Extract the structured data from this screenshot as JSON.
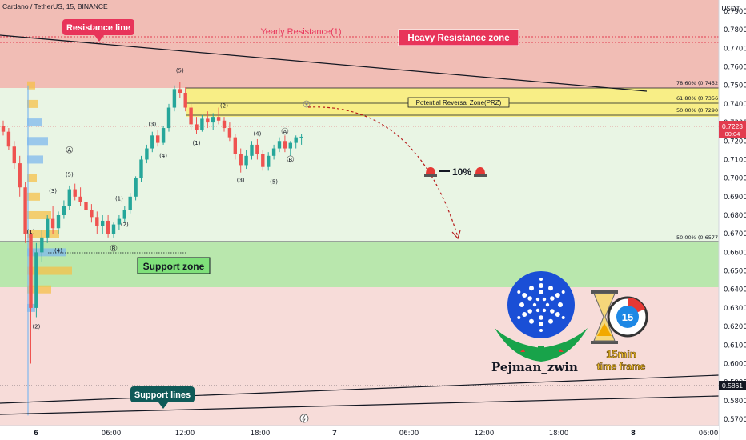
{
  "header": {
    "symbol_title": "Cardano / TetherUS, 15, BINANCE",
    "currency": "USDT"
  },
  "price_badge": {
    "price": "0.7223",
    "countdown": "00:04"
  },
  "level_badge": {
    "price": "0.5861"
  },
  "annotations": {
    "resistance_line": "Resistance line",
    "yearly_resistance": "Yearly Resistance(1)",
    "heavy_resistance_zone": "Heavy Resistance zone",
    "potential_reversal_zone": "Potential Reversal Zone(PRZ)",
    "support_zone": "Support zone",
    "support_lines": "Support lines",
    "target_drop": "10%",
    "fib_786": "78.60% (0.7452)",
    "fib_618": "61.80% (0.7356)",
    "fib_500": "50.00% (0.7290)",
    "fib_support": "50.00% (0.6577)"
  },
  "branding": {
    "author": "Pejman_zwin",
    "timeframe_number": "15",
    "timeframe_text_1": "15min",
    "timeframe_text_2": "time frame",
    "colors": {
      "cardano_blue": "#1a4fd6",
      "gold": "#f2c230",
      "leaf_green": "#18a34a"
    }
  },
  "chart_data": {
    "type": "candlestick",
    "title": "Cardano / TetherUS, 15, BINANCE",
    "y_ticks": [
      "0.7900",
      "0.7800",
      "0.7700",
      "0.7600",
      "0.7500",
      "0.7400",
      "0.7300",
      "0.7200",
      "0.7100",
      "0.7000",
      "0.6900",
      "0.6800",
      "0.6700",
      "0.6600",
      "0.6500",
      "0.6400",
      "0.6300",
      "0.6200",
      "0.6100",
      "0.6000",
      "0.5900",
      "0.5800",
      "0.5700"
    ],
    "x_ticks": [
      "6",
      "06:00",
      "12:00",
      "18:00",
      "7",
      "06:00",
      "12:00",
      "18:00",
      "8",
      "06:00"
    ],
    "ylim": [
      0.567,
      0.8
    ],
    "zones": [
      {
        "name": "Heavy Resistance zone",
        "from": 0.746,
        "to": 0.8,
        "color": "#f0b7b0"
      },
      {
        "name": "Potential Reversal Zone(PRZ)",
        "from": 0.729,
        "to": 0.7452,
        "color": "#f7ef8a"
      },
      {
        "name": "Support zone",
        "from": 0.634,
        "to": 0.6577,
        "color": "#b5e8a9"
      }
    ],
    "levels": {
      "yearly_resistance": 0.7765,
      "fib_786": 0.7452,
      "fib_618": 0.7356,
      "fib_500": 0.729,
      "fib_support": 0.6577,
      "current_price": 0.7223,
      "support_line_mark": 0.5861
    },
    "candles_ohlc": [
      [
        0.728,
        0.731,
        0.723,
        0.725
      ],
      [
        0.725,
        0.727,
        0.715,
        0.717
      ],
      [
        0.717,
        0.72,
        0.705,
        0.708
      ],
      [
        0.708,
        0.712,
        0.69,
        0.695
      ],
      [
        0.695,
        0.698,
        0.665,
        0.67
      ],
      [
        0.67,
        0.672,
        0.6,
        0.63
      ],
      [
        0.63,
        0.665,
        0.625,
        0.66
      ],
      [
        0.66,
        0.672,
        0.655,
        0.668
      ],
      [
        0.668,
        0.68,
        0.665,
        0.678
      ],
      [
        0.678,
        0.685,
        0.67,
        0.673
      ],
      [
        0.673,
        0.682,
        0.67,
        0.68
      ],
      [
        0.68,
        0.688,
        0.678,
        0.685
      ],
      [
        0.685,
        0.696,
        0.683,
        0.694
      ],
      [
        0.694,
        0.697,
        0.688,
        0.69
      ],
      [
        0.69,
        0.695,
        0.685,
        0.687
      ],
      [
        0.687,
        0.69,
        0.68,
        0.683
      ],
      [
        0.683,
        0.686,
        0.676,
        0.679
      ],
      [
        0.679,
        0.682,
        0.67,
        0.674
      ],
      [
        0.674,
        0.68,
        0.67,
        0.677
      ],
      [
        0.677,
        0.68,
        0.668,
        0.67
      ],
      [
        0.67,
        0.676,
        0.668,
        0.675
      ],
      [
        0.675,
        0.68,
        0.672,
        0.678
      ],
      [
        0.678,
        0.685,
        0.676,
        0.683
      ],
      [
        0.683,
        0.692,
        0.681,
        0.69
      ],
      [
        0.69,
        0.701,
        0.688,
        0.7
      ],
      [
        0.7,
        0.712,
        0.698,
        0.71
      ],
      [
        0.71,
        0.718,
        0.708,
        0.716
      ],
      [
        0.716,
        0.725,
        0.714,
        0.723
      ],
      [
        0.723,
        0.726,
        0.717,
        0.719
      ],
      [
        0.719,
        0.728,
        0.718,
        0.727
      ],
      [
        0.727,
        0.74,
        0.725,
        0.738
      ],
      [
        0.738,
        0.75,
        0.736,
        0.748
      ],
      [
        0.748,
        0.752,
        0.743,
        0.746
      ],
      [
        0.746,
        0.749,
        0.736,
        0.738
      ],
      [
        0.738,
        0.74,
        0.726,
        0.729
      ],
      [
        0.729,
        0.733,
        0.724,
        0.726
      ],
      [
        0.726,
        0.734,
        0.725,
        0.732
      ],
      [
        0.732,
        0.736,
        0.727,
        0.73
      ],
      [
        0.73,
        0.735,
        0.726,
        0.733
      ],
      [
        0.733,
        0.738,
        0.729,
        0.731
      ],
      [
        0.731,
        0.733,
        0.725,
        0.727
      ],
      [
        0.727,
        0.73,
        0.72,
        0.722
      ],
      [
        0.722,
        0.724,
        0.71,
        0.713
      ],
      [
        0.713,
        0.716,
        0.703,
        0.707
      ],
      [
        0.707,
        0.715,
        0.705,
        0.712
      ],
      [
        0.712,
        0.72,
        0.71,
        0.718
      ],
      [
        0.718,
        0.721,
        0.71,
        0.713
      ],
      [
        0.713,
        0.715,
        0.704,
        0.706
      ],
      [
        0.706,
        0.714,
        0.704,
        0.712
      ],
      [
        0.712,
        0.718,
        0.71,
        0.716
      ],
      [
        0.716,
        0.722,
        0.714,
        0.72
      ],
      [
        0.72,
        0.723,
        0.714,
        0.716
      ],
      [
        0.716,
        0.72,
        0.712,
        0.719
      ],
      [
        0.719,
        0.723,
        0.716,
        0.722
      ],
      [
        0.722,
        0.724,
        0.718,
        0.7223
      ]
    ],
    "wave_labels": [
      {
        "t": "(5)",
        "i": 32,
        "p": 0.757
      },
      {
        "t": "(1)",
        "i": 35,
        "p": 0.718
      },
      {
        "t": "(2)",
        "i": 40,
        "p": 0.738
      },
      {
        "t": "(3)",
        "i": 43,
        "p": 0.698
      },
      {
        "t": "(4)",
        "i": 46,
        "p": 0.723
      },
      {
        "t": "(5)",
        "i": 49,
        "p": 0.697
      },
      {
        "t": "A",
        "i": 51,
        "p": 0.724
      },
      {
        "t": "B",
        "i": 52,
        "p": 0.709
      },
      {
        "t": "(3)",
        "i": 27,
        "p": 0.728
      },
      {
        "t": "(4)",
        "i": 29,
        "p": 0.711
      },
      {
        "t": "(1)",
        "i": 21,
        "p": 0.688
      },
      {
        "t": "(2)",
        "i": 22,
        "p": 0.674
      },
      {
        "t": "B",
        "i": 20,
        "p": 0.661
      },
      {
        "t": "A",
        "i": 12,
        "p": 0.714
      },
      {
        "t": "(5)",
        "i": 12,
        "p": 0.701
      },
      {
        "t": "(3)",
        "i": 9,
        "p": 0.692
      },
      {
        "t": "(1)",
        "i": 5,
        "p": 0.67
      },
      {
        "t": "(4)",
        "i": 10,
        "p": 0.66
      },
      {
        "t": "(2)",
        "i": 6,
        "p": 0.619
      }
    ]
  }
}
